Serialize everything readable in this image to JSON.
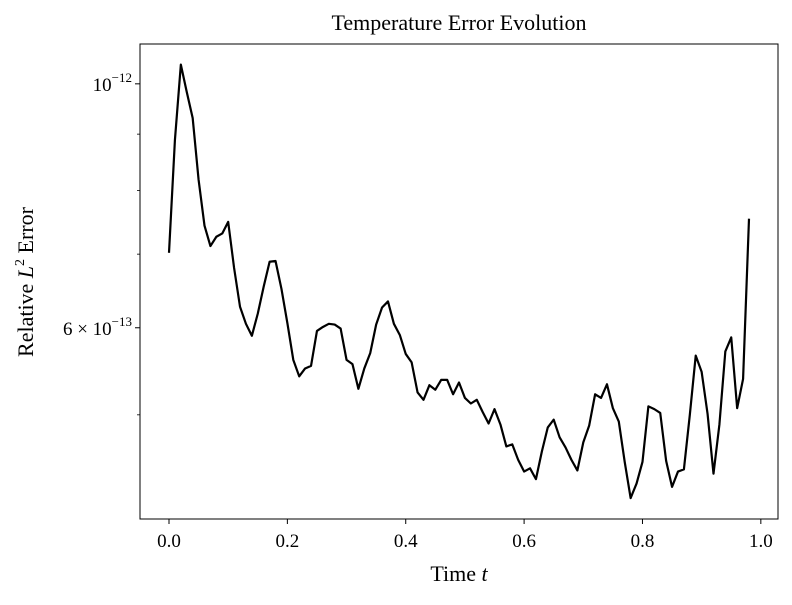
{
  "chart_data": {
    "type": "line",
    "title": "Temperature Error Evolution",
    "xlabel": {
      "text": "Time",
      "symbol": "t"
    },
    "ylabel": {
      "text": "Relative",
      "symbol": "L",
      "exponent": "2",
      "rest": "Error"
    },
    "x": [
      0,
      0.01,
      0.02,
      0.03,
      0.04,
      0.05,
      0.06,
      0.07,
      0.08,
      0.09,
      0.1,
      0.11,
      0.12,
      0.13,
      0.14,
      0.15,
      0.16,
      0.17,
      0.18,
      0.19,
      0.2,
      0.21,
      0.22,
      0.23,
      0.24,
      0.25,
      0.26,
      0.27,
      0.28,
      0.29,
      0.3,
      0.31,
      0.32,
      0.33,
      0.34,
      0.35,
      0.36,
      0.37,
      0.38,
      0.39,
      0.4,
      0.41,
      0.42,
      0.43,
      0.44,
      0.45,
      0.46,
      0.47,
      0.48,
      0.49,
      0.5,
      0.51,
      0.52,
      0.53,
      0.54,
      0.55,
      0.56,
      0.57,
      0.58,
      0.59,
      0.6,
      0.61,
      0.62,
      0.63,
      0.64,
      0.65,
      0.66,
      0.67,
      0.68,
      0.69,
      0.7,
      0.71,
      0.72,
      0.73,
      0.74,
      0.75,
      0.76,
      0.77,
      0.78,
      0.79,
      0.8,
      0.81,
      0.82,
      0.83,
      0.84,
      0.85,
      0.86,
      0.87,
      0.88,
      0.89,
      0.9,
      0.91,
      0.92,
      0.93,
      0.94,
      0.95,
      0.96,
      0.97,
      0.98
    ],
    "series": [
      {
        "color": "#000000",
        "values": [
          7.02e-13,
          8.89e-13,
          1.041e-12,
          9.83e-13,
          9.31e-13,
          8.18e-13,
          7.43e-13,
          7.12e-13,
          7.26e-13,
          7.31e-13,
          7.49e-13,
          6.8e-13,
          6.27e-13,
          6.05e-13,
          5.9e-13,
          6.18e-13,
          6.54e-13,
          6.89e-13,
          6.9e-13,
          6.51e-13,
          6.06e-13,
          5.61e-13,
          5.42e-13,
          5.51e-13,
          5.54e-13,
          5.96e-13,
          6.01e-13,
          6.05e-13,
          6.04e-13,
          5.99e-13,
          5.61e-13,
          5.56e-13,
          5.28e-13,
          5.51e-13,
          5.69e-13,
          6.04e-13,
          6.26e-13,
          6.34e-13,
          6.05e-13,
          5.91e-13,
          5.68e-13,
          5.58e-13,
          5.24e-13,
          5.16e-13,
          5.32e-13,
          5.27e-13,
          5.38e-13,
          5.38e-13,
          5.22e-13,
          5.35e-13,
          5.18e-13,
          5.12e-13,
          5.16e-13,
          5.03e-13,
          4.91e-13,
          5.06e-13,
          4.9e-13,
          4.68e-13,
          4.7e-13,
          4.55e-13,
          4.44e-13,
          4.47e-13,
          4.37e-13,
          4.63e-13,
          4.87e-13,
          4.95e-13,
          4.77e-13,
          4.67e-13,
          4.55e-13,
          4.45e-13,
          4.72e-13,
          4.89e-13,
          5.22e-13,
          5.18e-13,
          5.33e-13,
          5.07e-13,
          4.93e-13,
          4.53e-13,
          4.2e-13,
          4.33e-13,
          4.53e-13,
          5.09e-13,
          5.06e-13,
          5.02e-13,
          4.54e-13,
          4.3e-13,
          4.44e-13,
          4.46e-13,
          5e-13,
          5.66e-13,
          5.47e-13,
          5.01e-13,
          4.42e-13,
          4.9e-13,
          5.71e-13,
          5.88e-13,
          5.07e-13,
          5.39e-13,
          7.54e-13
        ]
      }
    ],
    "xlim": [
      -0.049,
      1.029
    ],
    "xticks": [
      {
        "value": 0,
        "label": "0.0"
      },
      {
        "value": 0.2,
        "label": "0.2"
      },
      {
        "value": 0.4,
        "label": "0.4"
      },
      {
        "value": 0.6,
        "label": "0.6"
      },
      {
        "value": 0.8,
        "label": "0.8"
      },
      {
        "value": 1,
        "label": "1.0"
      }
    ],
    "ylim": [
      4.02e-13,
      1.087e-12
    ],
    "log_y": true,
    "yticks": [
      {
        "value": 1e-12,
        "label": "10",
        "exponent": "−12"
      },
      {
        "value": 6e-13,
        "label": "6 × 10",
        "exponent": "−13"
      }
    ],
    "yminorticks": [
      5e-13,
      7e-13,
      8e-13,
      9e-13
    ]
  }
}
